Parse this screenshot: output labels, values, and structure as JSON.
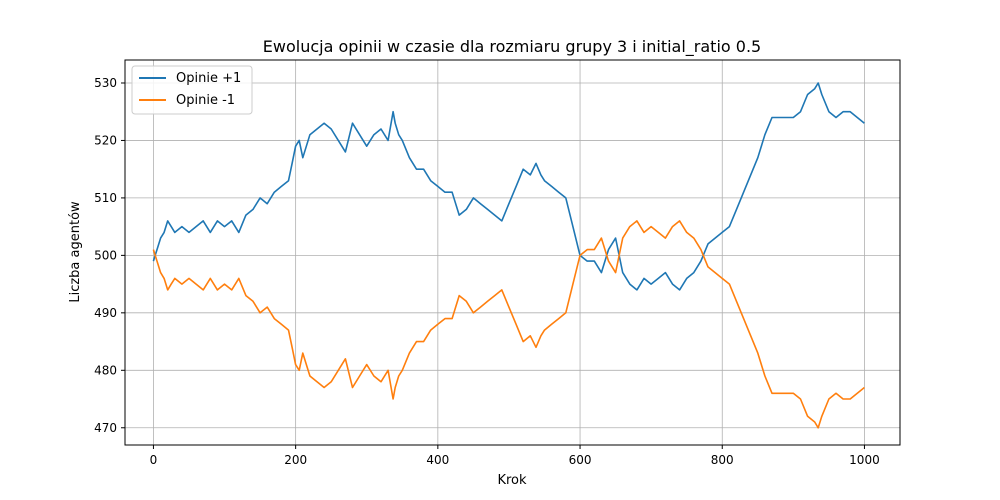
{
  "chart_data": {
    "type": "line",
    "title": "Ewolucja opinii w czasie dla rozmiaru grupy 3 i initial_ratio 0.5",
    "xlabel": "Krok",
    "ylabel": "Liczba agentów",
    "xlim": [
      -40,
      1050
    ],
    "ylim": [
      467,
      534
    ],
    "xticks": [
      0,
      200,
      400,
      600,
      800,
      1000
    ],
    "yticks": [
      470,
      480,
      490,
      500,
      510,
      520,
      530
    ],
    "grid": true,
    "legend_position": "top-left",
    "series": [
      {
        "name": "Opinie +1",
        "color": "#1f77b4",
        "x": [
          0,
          5,
          10,
          15,
          20,
          25,
          30,
          40,
          50,
          60,
          70,
          80,
          90,
          100,
          110,
          120,
          130,
          140,
          150,
          160,
          170,
          180,
          190,
          195,
          200,
          205,
          210,
          220,
          230,
          240,
          250,
          260,
          270,
          280,
          290,
          300,
          310,
          320,
          330,
          337,
          340,
          345,
          350,
          360,
          370,
          380,
          390,
          400,
          410,
          420,
          430,
          440,
          450,
          460,
          470,
          480,
          490,
          500,
          510,
          520,
          530,
          538,
          545,
          550,
          560,
          570,
          580,
          590,
          600,
          610,
          620,
          630,
          640,
          650,
          660,
          670,
          680,
          690,
          700,
          710,
          720,
          730,
          740,
          750,
          760,
          770,
          780,
          790,
          800,
          810,
          820,
          830,
          840,
          850,
          860,
          870,
          880,
          890,
          900,
          910,
          920,
          930,
          935,
          940,
          950,
          960,
          970,
          980,
          990,
          1000
        ],
        "y": [
          499,
          501,
          503,
          504,
          506,
          505,
          504,
          505,
          504,
          505,
          506,
          504,
          506,
          505,
          506,
          504,
          507,
          508,
          510,
          509,
          511,
          512,
          513,
          516,
          519,
          520,
          517,
          521,
          522,
          523,
          522,
          520,
          518,
          523,
          521,
          519,
          521,
          522,
          520,
          525,
          523,
          521,
          520,
          517,
          515,
          515,
          513,
          512,
          511,
          511,
          507,
          508,
          510,
          509,
          508,
          507,
          506,
          509,
          512,
          515,
          514,
          516,
          514,
          513,
          512,
          511,
          510,
          505,
          500,
          499,
          499,
          497,
          501,
          503,
          497,
          495,
          494,
          496,
          495,
          496,
          497,
          495,
          494,
          496,
          497,
          499,
          502,
          503,
          504,
          505,
          508,
          511,
          514,
          517,
          521,
          524,
          524,
          524,
          524,
          525,
          528,
          529,
          530,
          528,
          525,
          524,
          525,
          525,
          524,
          523
        ]
      },
      {
        "name": "Opinie -1",
        "color": "#ff7f0e",
        "x": [
          0,
          5,
          10,
          15,
          20,
          25,
          30,
          40,
          50,
          60,
          70,
          80,
          90,
          100,
          110,
          120,
          130,
          140,
          150,
          160,
          170,
          180,
          190,
          195,
          200,
          205,
          210,
          220,
          230,
          240,
          250,
          260,
          270,
          280,
          290,
          300,
          310,
          320,
          330,
          337,
          340,
          345,
          350,
          360,
          370,
          380,
          390,
          400,
          410,
          420,
          430,
          440,
          450,
          460,
          470,
          480,
          490,
          500,
          510,
          520,
          530,
          538,
          545,
          550,
          560,
          570,
          580,
          590,
          600,
          610,
          620,
          630,
          640,
          650,
          660,
          670,
          680,
          690,
          700,
          710,
          720,
          730,
          740,
          750,
          760,
          770,
          780,
          790,
          800,
          810,
          820,
          830,
          840,
          850,
          860,
          870,
          880,
          890,
          900,
          910,
          920,
          930,
          935,
          940,
          950,
          960,
          970,
          980,
          990,
          1000
        ],
        "y": [
          501,
          499,
          497,
          496,
          494,
          495,
          496,
          495,
          496,
          495,
          494,
          496,
          494,
          495,
          494,
          496,
          493,
          492,
          490,
          491,
          489,
          488,
          487,
          484,
          481,
          480,
          483,
          479,
          478,
          477,
          478,
          480,
          482,
          477,
          479,
          481,
          479,
          478,
          480,
          475,
          477,
          479,
          480,
          483,
          485,
          485,
          487,
          488,
          489,
          489,
          493,
          492,
          490,
          491,
          492,
          493,
          494,
          491,
          488,
          485,
          486,
          484,
          486,
          487,
          488,
          489,
          490,
          495,
          500,
          501,
          501,
          503,
          499,
          497,
          503,
          505,
          506,
          504,
          505,
          504,
          503,
          505,
          506,
          504,
          503,
          501,
          498,
          497,
          496,
          495,
          492,
          489,
          486,
          483,
          479,
          476,
          476,
          476,
          476,
          475,
          472,
          471,
          470,
          472,
          475,
          476,
          475,
          475,
          476,
          477
        ]
      }
    ]
  }
}
